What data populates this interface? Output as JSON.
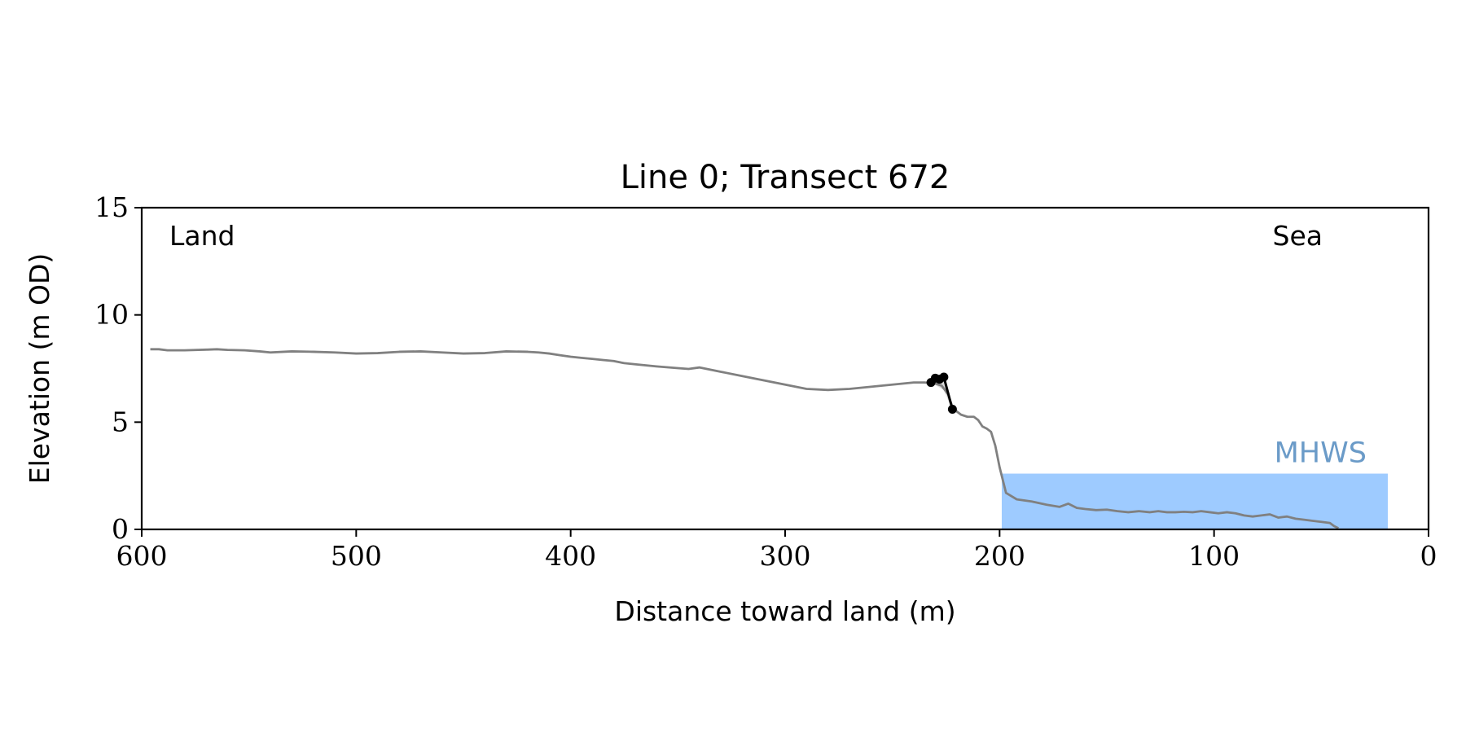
{
  "chart_data": {
    "type": "line",
    "title": "Line 0; Transect 672",
    "xlabel": "Distance toward land (m)",
    "ylabel": "Elevation (m OD)",
    "xlim": [
      600,
      0
    ],
    "ylim": [
      0,
      15
    ],
    "x_inverted": true,
    "grid": false,
    "xticks": [
      600,
      500,
      400,
      300,
      200,
      100,
      0
    ],
    "yticks": [
      0,
      5,
      10,
      15
    ],
    "annotations": {
      "land": "Land",
      "sea": "Sea",
      "mhws": "MHWS"
    },
    "mhws": {
      "label": "MHWS",
      "level": 2.6,
      "x_start": 199,
      "x_end": 19
    },
    "colors": {
      "profile": "#808080",
      "fit": "#000000",
      "water": "#9ecbff",
      "mhws_label": "#6b9bc8",
      "fit_fill": "#d3d3d3"
    },
    "series": [
      {
        "role": "profile",
        "x": [
          596,
          592,
          588,
          580,
          570,
          565,
          560,
          552,
          545,
          540,
          530,
          520,
          510,
          500,
          490,
          480,
          470,
          460,
          450,
          440,
          430,
          420,
          415,
          410,
          405,
          400,
          395,
          390,
          385,
          380,
          375,
          370,
          360,
          350,
          345,
          340,
          330,
          320,
          310,
          300,
          290,
          280,
          270,
          260,
          250,
          240,
          235,
          230,
          227,
          224,
          222,
          220,
          218,
          215,
          212,
          210,
          208,
          206,
          204,
          202,
          200,
          197,
          192,
          185,
          178,
          172,
          168,
          164,
          160,
          155,
          150,
          145,
          140,
          135,
          130,
          126,
          122,
          118,
          114,
          110,
          106,
          102,
          98,
          94,
          90,
          86,
          82,
          78,
          74,
          70,
          66,
          62,
          58,
          54,
          50,
          46,
          44,
          42
        ],
        "y": [
          8.4,
          8.4,
          8.35,
          8.35,
          8.38,
          8.4,
          8.37,
          8.35,
          8.3,
          8.25,
          8.3,
          8.28,
          8.25,
          8.2,
          8.22,
          8.28,
          8.3,
          8.25,
          8.2,
          8.22,
          8.3,
          8.28,
          8.25,
          8.2,
          8.12,
          8.05,
          8.0,
          7.95,
          7.9,
          7.85,
          7.75,
          7.7,
          7.6,
          7.52,
          7.48,
          7.55,
          7.35,
          7.15,
          6.95,
          6.75,
          6.55,
          6.5,
          6.55,
          6.65,
          6.75,
          6.85,
          6.85,
          6.8,
          6.7,
          6.3,
          5.7,
          5.5,
          5.35,
          5.25,
          5.25,
          5.1,
          4.8,
          4.7,
          4.55,
          3.9,
          2.9,
          1.7,
          1.4,
          1.3,
          1.15,
          1.05,
          1.2,
          1.0,
          0.95,
          0.9,
          0.92,
          0.85,
          0.8,
          0.85,
          0.8,
          0.85,
          0.8,
          0.8,
          0.82,
          0.8,
          0.85,
          0.8,
          0.75,
          0.8,
          0.75,
          0.65,
          0.6,
          0.65,
          0.7,
          0.55,
          0.6,
          0.5,
          0.45,
          0.4,
          0.35,
          0.3,
          0.15,
          0.05
        ]
      },
      {
        "role": "fit",
        "x": [
          232,
          230,
          228,
          226,
          222
        ],
        "y": [
          6.85,
          7.05,
          7.0,
          7.1,
          5.6
        ]
      }
    ]
  }
}
